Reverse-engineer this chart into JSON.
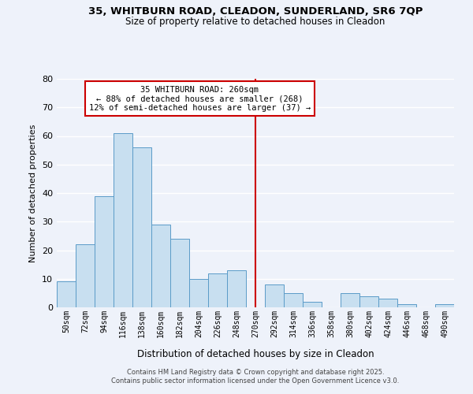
{
  "title_line1": "35, WHITBURN ROAD, CLEADON, SUNDERLAND, SR6 7QP",
  "title_line2": "Size of property relative to detached houses in Cleadon",
  "bar_labels": [
    "50sqm",
    "72sqm",
    "94sqm",
    "116sqm",
    "138sqm",
    "160sqm",
    "182sqm",
    "204sqm",
    "226sqm",
    "248sqm",
    "270sqm",
    "292sqm",
    "314sqm",
    "336sqm",
    "358sqm",
    "380sqm",
    "402sqm",
    "424sqm",
    "446sqm",
    "468sqm",
    "490sqm"
  ],
  "bar_values": [
    9,
    22,
    39,
    61,
    56,
    29,
    24,
    10,
    12,
    13,
    0,
    8,
    5,
    2,
    0,
    5,
    4,
    3,
    1,
    0,
    1
  ],
  "bar_color": "#c8dff0",
  "bar_edge_color": "#5b9bc8",
  "vline_index": 10,
  "vline_color": "#cc0000",
  "ylabel": "Number of detached properties",
  "xlabel": "Distribution of detached houses by size in Cleadon",
  "ylim": [
    0,
    80
  ],
  "yticks": [
    0,
    10,
    20,
    30,
    40,
    50,
    60,
    70,
    80
  ],
  "annotation_title": "35 WHITBURN ROAD: 260sqm",
  "annotation_line2": "← 88% of detached houses are smaller (268)",
  "annotation_line3": "12% of semi-detached houses are larger (37) →",
  "footer_line1": "Contains HM Land Registry data © Crown copyright and database right 2025.",
  "footer_line2": "Contains public sector information licensed under the Open Government Licence v3.0.",
  "background_color": "#eef2fa",
  "grid_color": "#ffffff"
}
